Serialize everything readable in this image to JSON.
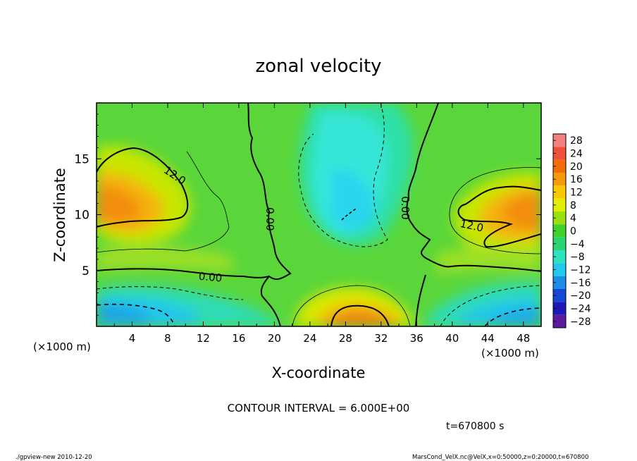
{
  "chart_data": {
    "type": "heatmap",
    "title": "zonal velocity",
    "xlabel": "X-coordinate",
    "ylabel": "Z-coordinate",
    "x_unit_label": "(×1000 m)",
    "xlim": [
      0,
      50
    ],
    "ylim": [
      0,
      20
    ],
    "xticks": [
      4,
      8,
      12,
      16,
      20,
      24,
      28,
      32,
      36,
      40,
      44,
      48
    ],
    "yticks": [
      5,
      10,
      15
    ],
    "colorbar": {
      "levels": [
        28,
        24,
        20,
        16,
        12,
        8,
        4,
        0,
        -4,
        -8,
        -12,
        -16,
        -20,
        -24,
        -28
      ],
      "labels": [
        "28",
        "24",
        "20",
        "16",
        "12",
        "8",
        "4",
        "0",
        "−4",
        "−8",
        "−12",
        "−16",
        "−20",
        "−24",
        "−28"
      ],
      "colors": [
        "#f5807f",
        "#ef4f3b",
        "#f06d0a",
        "#f59a0a",
        "#f8c800",
        "#e2ee00",
        "#9cdf10",
        "#3fd22a",
        "#2ad570",
        "#2ee2c0",
        "#22c8ee",
        "#1c8de6",
        "#1746d2",
        "#1d18b8",
        "#5c1a9c"
      ]
    },
    "contour_labels": [
      {
        "text": "12.0",
        "x": 8.8,
        "z": 13.5,
        "rotate": 34
      },
      {
        "text": "0.00",
        "x": 19.5,
        "z": 9.6,
        "rotate": 90
      },
      {
        "text": "0.00",
        "x": 12.8,
        "z": 4.4,
        "rotate": 5
      },
      {
        "text": "0.00",
        "x": 34.7,
        "z": 10.6,
        "rotate": 90
      },
      {
        "text": "12.0",
        "x": 42.2,
        "z": 9.0,
        "rotate": 12
      }
    ],
    "features": [
      {
        "kind": "positive max",
        "x": 3,
        "z": 11,
        "value": 15
      },
      {
        "kind": "positive max",
        "x": 46,
        "z": 10,
        "value": 15
      },
      {
        "kind": "positive max",
        "x": 29.5,
        "z": 0.9,
        "value": 15
      },
      {
        "kind": "negative min",
        "x": 27.5,
        "z": 10,
        "value": -11
      },
      {
        "kind": "negative min",
        "x": 1.5,
        "z": 1.1,
        "value": -14
      },
      {
        "kind": "negative min",
        "x": 47,
        "z": 1.4,
        "value": -14
      }
    ]
  },
  "contour_interval_text": "CONTOUR INTERVAL = 6.000E+00",
  "time_text": "t=670800 s",
  "footer_left": "./gpview-new  2010-12-20",
  "footer_right": "MarsCond_VelX.nc@VelX,x=0:50000,z=0:20000,t=670800"
}
